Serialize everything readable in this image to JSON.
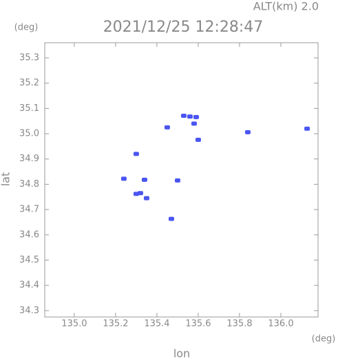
{
  "chart_data": {
    "type": "scatter",
    "title": "2021/12/25 12:28:47",
    "subtitle": "ALT(km) 2.0",
    "x_label": "lon",
    "y_label": "lat",
    "x_unit": "(deg)",
    "y_unit": "(deg)",
    "x": [
      135.53,
      135.56,
      135.59,
      135.45,
      135.58,
      135.6,
      135.84,
      136.127,
      135.3,
      135.32,
      135.3,
      135.35,
      135.47,
      135.5,
      135.24,
      135.34
    ],
    "y": [
      35.071,
      35.068,
      35.066,
      35.025,
      35.04,
      34.976,
      35.006,
      35.02,
      34.92,
      34.765,
      34.762,
      34.745,
      34.663,
      34.815,
      34.822,
      34.818
    ],
    "color": "#4a55f0",
    "xlim": [
      134.857,
      136.18
    ],
    "ylim": [
      34.275,
      35.36
    ],
    "xticks": [
      {
        "value": 135,
        "label": "135.0"
      },
      135.2,
      135.4,
      135.6,
      135.8,
      {
        "value": 136,
        "label": "136.0"
      }
    ],
    "yticks": [
      34.3,
      34.4,
      34.5,
      34.6,
      34.7,
      34.8,
      34.9,
      {
        "value": 35,
        "label": "35.0"
      },
      35.1,
      35.2,
      35.3
    ]
  }
}
